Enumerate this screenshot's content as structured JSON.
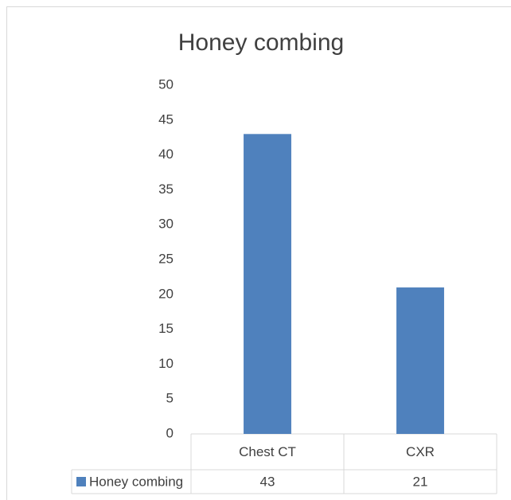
{
  "chart_data": {
    "type": "bar",
    "title": "Honey combing",
    "categories": [
      "Chest CT",
      "CXR"
    ],
    "series": [
      {
        "name": "Honey combing",
        "color": "#4f81bd",
        "values": [
          43,
          21
        ]
      }
    ],
    "ylim": [
      0,
      50
    ],
    "yticks": [
      0,
      5,
      10,
      15,
      20,
      25,
      30,
      35,
      40,
      45,
      50
    ],
    "grid": false,
    "data_table": true
  }
}
